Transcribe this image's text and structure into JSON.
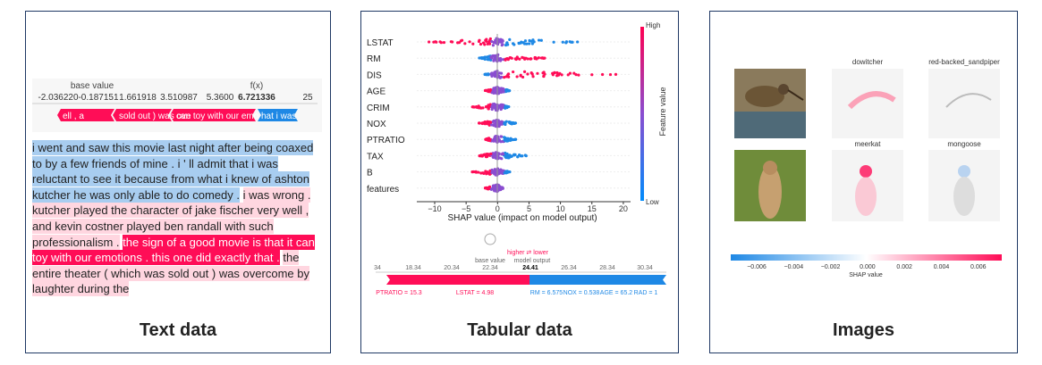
{
  "text_panel": {
    "caption": "Text data",
    "base_label": "base value",
    "fx_label": "f(x)",
    "ticks": [
      "-2.036220",
      "-0.187151",
      "1.661918",
      "3.510987",
      "5.3600",
      "6.721336",
      "25"
    ],
    "bar_segments": [
      "ell , a",
      "sold out ) was ove",
      "can toy with our emo",
      "hat i was"
    ],
    "passages": [
      {
        "text": "i went and saw this movie last night after being coaxed to by a few friends of mine . i ' ll admit that i was reluctant to see it because from what i knew of ashton kutcher he was only able to do comedy .",
        "effect": "negative"
      },
      {
        "text": "i was wrong . kutcher played the character of jake fischer very well , and kevin costner played ben randall with such professionalism .",
        "effect": "weak-positive"
      },
      {
        "text": "the sign of a good movie is that it can toy with our emotions . this one did exactly that .",
        "effect": "positive"
      },
      {
        "text": "the entire theater ( which was sold out ) was overcome by laughter during the",
        "effect": "weak-positive"
      }
    ]
  },
  "tabular_panel": {
    "caption": "Tabular data",
    "features": [
      "LSTAT",
      "RM",
      "DIS",
      "AGE",
      "CRIM",
      "NOX",
      "PTRATIO",
      "TAX",
      "B",
      "features"
    ],
    "xticks": [
      "−10",
      "−5",
      "0",
      "5",
      "10",
      "15",
      "20"
    ],
    "xlabel": "SHAP value (impact on model output)",
    "colorbar": {
      "high": "High",
      "low": "Low",
      "label": "Feature value"
    },
    "force": {
      "direction": "higher ⇄ lower",
      "base_label": "base value",
      "output_label": "model output",
      "ticks": [
        "34",
        "18.34",
        "20.34",
        "22.34",
        "24.41",
        "26.34",
        "28.34",
        "30.34"
      ],
      "positive": [
        "PTRATIO = 15.3",
        "LSTAT = 4.98"
      ],
      "negative": [
        "RM = 6.575",
        "NOX = 0.538",
        "AGE = 65.2",
        "RAD = 1"
      ]
    }
  },
  "image_panel": {
    "caption": "Images",
    "labels": [
      "dowitcher",
      "red-backed_sandpiper",
      "meerkat",
      "mongoose"
    ],
    "colorbar_ticks": [
      "−0.006",
      "−0.004",
      "−0.002",
      "0.000",
      "0.002",
      "0.004",
      "0.006"
    ],
    "colorbar_label": "SHAP value"
  }
}
